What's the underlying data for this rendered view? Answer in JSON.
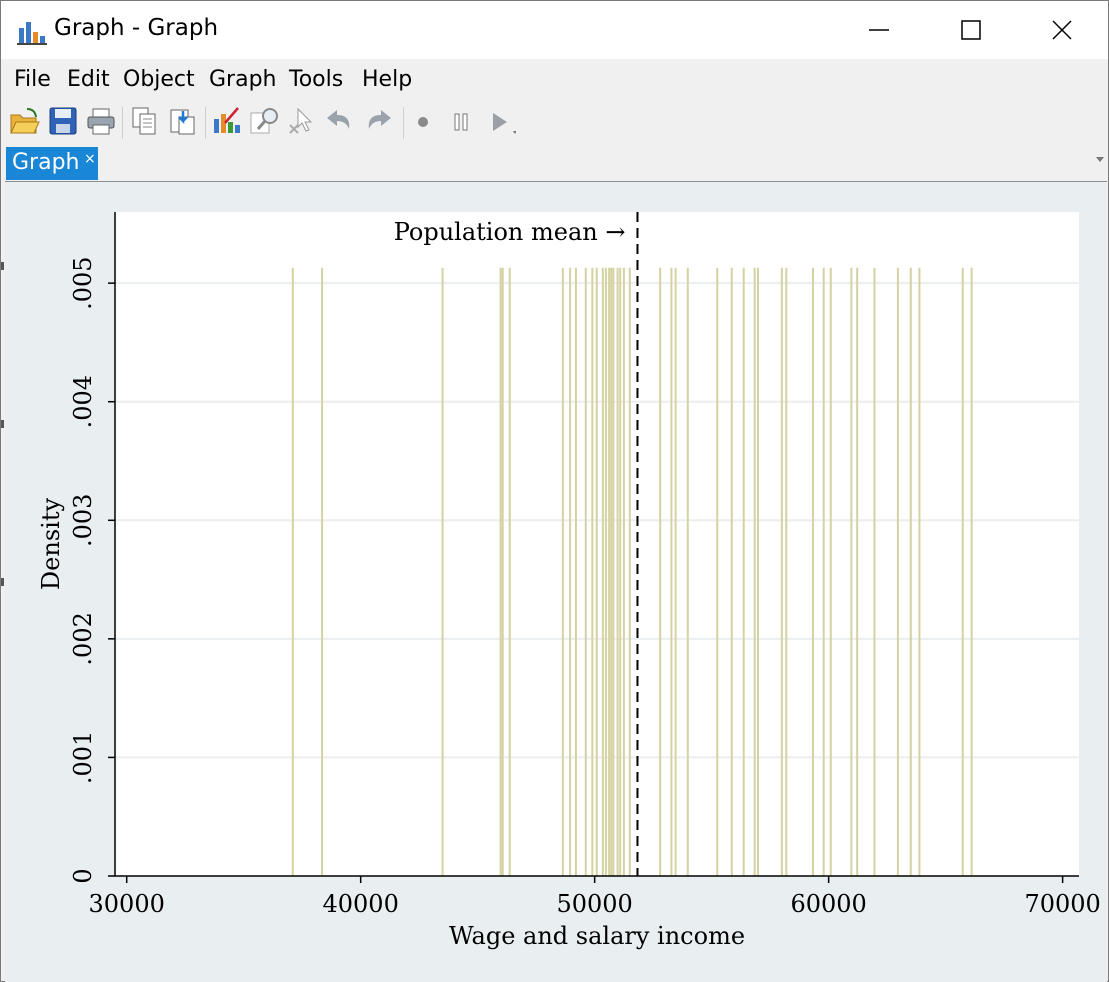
{
  "window": {
    "title": "Graph - Graph",
    "controls": {
      "minimize": "minimize-icon",
      "maximize": "maximize-icon",
      "close": "close-icon"
    }
  },
  "menu": {
    "items": [
      "File",
      "Edit",
      "Object",
      "Graph",
      "Tools",
      "Help"
    ]
  },
  "toolbar": {
    "buttons": [
      "open-icon",
      "save-icon",
      "print-icon",
      "copy-icon",
      "paste-icon",
      "graph-editor-icon",
      "zoom-icon",
      "pointer-icon",
      "undo-icon",
      "redo-icon",
      "record-icon",
      "pause-icon",
      "play-icon"
    ]
  },
  "tab": {
    "label": "Graph",
    "close": "×"
  },
  "colors": {
    "spike": "#d5d2a2",
    "tab_bg": "#1a86d6",
    "plot_bg": "#ffffff",
    "grid": "#eaeef0",
    "outer_bg": "#e9eef1"
  },
  "chart_data": {
    "type": "spike",
    "xlabel": "Wage and salary income",
    "ylabel": "Density",
    "xlim": [
      29500,
      70700
    ],
    "ylim": [
      0,
      0.0056
    ],
    "xticks": [
      30000,
      40000,
      50000,
      60000,
      70000
    ],
    "xtick_labels": [
      "30000",
      "40000",
      "50000",
      "60000",
      "70000"
    ],
    "yticks": [
      0,
      0.001,
      0.002,
      0.003,
      0.004,
      0.005
    ],
    "ytick_labels": [
      "0",
      ".001",
      ".002",
      ".003",
      ".004",
      ".005"
    ],
    "spike_height": 0.00513,
    "values": [
      37100,
      38350,
      43500,
      45980,
      46070,
      46370,
      48640,
      48950,
      49200,
      49620,
      49900,
      50090,
      50350,
      50480,
      50620,
      50710,
      50800,
      50980,
      51090,
      51250,
      51500,
      52800,
      53280,
      53460,
      53980,
      55240,
      55860,
      56370,
      56840,
      56980,
      58000,
      58190,
      59330,
      59790,
      60090,
      60970,
      61220,
      61960,
      62960,
      63510,
      63880,
      65730,
      66110
    ],
    "mean_line": {
      "x": 51830,
      "style": "dashed"
    },
    "annotation": {
      "text": "Population mean →",
      "x": 51830
    }
  }
}
